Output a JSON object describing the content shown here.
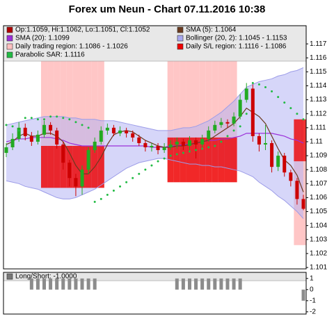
{
  "chart_data": [
    {
      "type": "candlestick",
      "title": "Forex um Neun - Chart 07.11.2016 10:38",
      "ylim": [
        1.1009,
        1.1183
      ],
      "yticks": [
        1.101,
        1.102,
        1.103,
        1.104,
        1.105,
        1.106,
        1.107,
        1.108,
        1.109,
        1.11,
        1.111,
        1.112,
        1.113,
        1.114,
        1.115,
        1.116,
        1.117
      ],
      "up_color": "#22aa22",
      "down_color": "#cc0000",
      "legend": [
        {
          "label": "Op:1.1059, Hi:1.1062, Lo:1.1051, Cl:1.1052",
          "color": "#b00000"
        },
        {
          "label": "SMA (5): 1.1064",
          "color": "#6b3a1f"
        },
        {
          "label": "SMA (20): 1.1099",
          "color": "#9b30d9"
        },
        {
          "label": "Bollinger (20, 2): 1.1045 - 1.1153",
          "color": "#a8a8f0"
        },
        {
          "label": "Daily trading region: 1.1086 - 1.1026",
          "color": "#ffc0c0"
        },
        {
          "label": "Daily S/L region: 1.1116 - 1.1086",
          "color": "#ee0000"
        },
        {
          "label": "Parabolic SAR: 1.1116",
          "color": "#22bb44"
        }
      ],
      "open": [
        1.1092,
        1.1096,
        1.1102,
        1.111,
        1.1104,
        1.11,
        1.1105,
        1.1112,
        1.1108,
        1.1098,
        1.1085,
        1.1074,
        1.1068,
        1.108,
        1.1094,
        1.11,
        1.1108,
        1.111,
        1.1106,
        1.1108,
        1.1106,
        1.1103,
        1.1099,
        1.1096,
        1.1097,
        1.1094,
        1.1096,
        1.1098,
        1.11,
        1.1097,
        1.1101,
        1.1098,
        1.1102,
        1.1108,
        1.1112,
        1.1114,
        1.1113,
        1.1118,
        1.113,
        1.1138,
        1.1104,
        1.1098,
        1.1099,
        1.1082,
        1.109,
        1.1078,
        1.1072,
        1.1059
      ],
      "high": [
        1.1099,
        1.1106,
        1.1114,
        1.1113,
        1.1107,
        1.1108,
        1.1115,
        1.1114,
        1.111,
        1.11,
        1.1087,
        1.1077,
        1.1083,
        1.1096,
        1.1103,
        1.1111,
        1.1113,
        1.1112,
        1.1111,
        1.111,
        1.1108,
        1.1105,
        1.1101,
        1.1099,
        1.1099,
        1.1099,
        1.1101,
        1.1103,
        1.1102,
        1.1104,
        1.1103,
        1.1105,
        1.1111,
        1.1115,
        1.1117,
        1.1116,
        1.1121,
        1.1134,
        1.1142,
        1.1141,
        1.1106,
        1.1112,
        1.1101,
        1.1093,
        1.1092,
        1.108,
        1.1074,
        1.1062
      ],
      "low": [
        1.1089,
        1.1094,
        1.11,
        1.1101,
        1.1097,
        1.1098,
        1.1103,
        1.1105,
        1.1095,
        1.108,
        1.1068,
        1.1061,
        1.1062,
        1.1077,
        1.1092,
        1.1098,
        1.1105,
        1.1104,
        1.1104,
        1.1103,
        1.11,
        1.1097,
        1.1093,
        1.1093,
        1.1091,
        1.1092,
        1.1094,
        1.1095,
        1.1094,
        1.1094,
        1.1088,
        1.1096,
        1.11,
        1.1106,
        1.111,
        1.111,
        1.1111,
        1.1116,
        1.1128,
        1.11,
        1.1093,
        1.1094,
        1.1078,
        1.1079,
        1.1075,
        1.1068,
        1.1055,
        1.1051
      ],
      "close": [
        1.1096,
        1.1102,
        1.111,
        1.1104,
        1.11,
        1.1105,
        1.1112,
        1.1108,
        1.1098,
        1.1085,
        1.1074,
        1.1068,
        1.108,
        1.1094,
        1.11,
        1.1108,
        1.111,
        1.1106,
        1.1108,
        1.1106,
        1.1103,
        1.1099,
        1.1096,
        1.1097,
        1.1094,
        1.1096,
        1.1098,
        1.11,
        1.1097,
        1.1101,
        1.1098,
        1.1102,
        1.1108,
        1.1112,
        1.1114,
        1.1113,
        1.1118,
        1.113,
        1.1138,
        1.1104,
        1.1098,
        1.1099,
        1.1082,
        1.109,
        1.1078,
        1.1072,
        1.1059,
        1.1052
      ],
      "trading_region": {
        "color": "#ffb8b8",
        "high": [
          null,
          null,
          null,
          null,
          null,
          null,
          1.1158,
          1.1158,
          1.1158,
          1.1158,
          1.1158,
          1.1158,
          1.1158,
          1.1158,
          1.1158,
          1.1158,
          null,
          null,
          null,
          null,
          null,
          null,
          null,
          null,
          null,
          null,
          1.1158,
          1.1158,
          1.1158,
          1.1158,
          1.1158,
          1.1158,
          1.1158,
          1.1158,
          1.1158,
          1.1158,
          1.1158,
          null,
          null,
          null,
          null,
          null,
          null,
          null,
          null,
          null,
          1.1086,
          1.1086
        ],
        "low": [
          null,
          null,
          null,
          null,
          null,
          null,
          1.1067,
          1.1067,
          1.1067,
          1.1067,
          1.1067,
          1.1067,
          1.1067,
          1.1067,
          1.1067,
          1.1067,
          null,
          null,
          null,
          null,
          null,
          null,
          null,
          null,
          null,
          null,
          1.1071,
          1.1071,
          1.1071,
          1.1071,
          1.1071,
          1.1071,
          1.1071,
          1.1071,
          1.1071,
          1.1071,
          1.1071,
          null,
          null,
          null,
          null,
          null,
          null,
          null,
          null,
          null,
          1.1026,
          1.1026
        ]
      },
      "sl_region": {
        "color": "#ee0000",
        "high": [
          null,
          null,
          null,
          null,
          null,
          null,
          1.1097,
          1.1097,
          1.1097,
          1.1097,
          1.1097,
          1.1097,
          1.1097,
          1.1097,
          1.1097,
          1.1097,
          null,
          null,
          null,
          null,
          null,
          null,
          null,
          null,
          null,
          null,
          1.1103,
          1.1103,
          1.1103,
          1.1103,
          1.1103,
          1.1103,
          1.1103,
          1.1103,
          1.1103,
          1.1103,
          1.1103,
          null,
          null,
          null,
          null,
          null,
          null,
          null,
          null,
          null,
          1.1116,
          1.1116
        ],
        "low": [
          null,
          null,
          null,
          null,
          null,
          null,
          1.1067,
          1.1067,
          1.1067,
          1.1067,
          1.1067,
          1.1067,
          1.1067,
          1.1067,
          1.1067,
          1.1067,
          null,
          null,
          null,
          null,
          null,
          null,
          null,
          null,
          null,
          null,
          1.1071,
          1.1071,
          1.1071,
          1.1071,
          1.1071,
          1.1071,
          1.1071,
          1.1071,
          1.1071,
          1.1071,
          1.1071,
          null,
          null,
          null,
          null,
          null,
          null,
          null,
          null,
          null,
          1.1086,
          1.1086
        ]
      },
      "bollinger": {
        "color": "#b4b4f4",
        "upper": [
          1.1112,
          1.1113,
          1.1114,
          1.1115,
          1.1116,
          1.1117,
          1.1118,
          1.1118,
          1.1118,
          1.1118,
          1.1117,
          1.1117,
          1.1116,
          1.1116,
          1.1116,
          1.1115,
          1.1115,
          1.1115,
          1.1114,
          1.1113,
          1.1112,
          1.1111,
          1.111,
          1.1109,
          1.1108,
          1.1108,
          1.1108,
          1.1109,
          1.111,
          1.111,
          1.1111,
          1.1113,
          1.1115,
          1.1118,
          1.1121,
          1.1125,
          1.1129,
          1.1134,
          1.1139,
          1.1141,
          1.1143,
          1.1144,
          1.1145,
          1.1147,
          1.1148,
          1.115,
          1.1151,
          1.1153
        ],
        "lower": [
          1.1072,
          1.1071,
          1.107,
          1.1068,
          1.1067,
          1.1066,
          1.1064,
          1.1062,
          1.106,
          1.1059,
          1.1059,
          1.106,
          1.1062,
          1.1064,
          1.1066,
          1.1069,
          1.1072,
          1.1075,
          1.1078,
          1.1081,
          1.1083,
          1.1085,
          1.1086,
          1.1087,
          1.1088,
          1.1088,
          1.1087,
          1.1086,
          1.1085,
          1.1084,
          1.1084,
          1.1083,
          1.1083,
          1.1082,
          1.1082,
          1.1081,
          1.108,
          1.1079,
          1.1077,
          1.1075,
          1.1071,
          1.1068,
          1.1065,
          1.1061,
          1.1058,
          1.1054,
          1.105,
          1.1045
        ]
      },
      "sma20": {
        "color": "#9b30d9",
        "values": [
          1.11,
          1.1101,
          1.1102,
          1.1102,
          1.1103,
          1.1103,
          1.1103,
          1.1103,
          1.1102,
          1.1101,
          1.1099,
          1.1098,
          1.1097,
          1.1097,
          1.1097,
          1.1097,
          1.1097,
          1.1097,
          1.1097,
          1.1097,
          1.1097,
          1.1097,
          1.1097,
          1.1096,
          1.1096,
          1.1096,
          1.1097,
          1.1097,
          1.1098,
          1.1098,
          1.1099,
          1.11,
          1.1101,
          1.1101,
          1.1102,
          1.1102,
          1.1103,
          1.1104,
          1.1106,
          1.1106,
          1.1106,
          1.1106,
          1.1106,
          1.1105,
          1.1104,
          1.1102,
          1.1101,
          1.1099
        ]
      },
      "sma5": {
        "color": "#6b3a1f",
        "values": [
          1.1098,
          1.11,
          1.1104,
          1.1106,
          1.1104,
          1.1104,
          1.1106,
          1.1106,
          1.1104,
          1.11,
          1.1092,
          1.1083,
          1.1077,
          1.1077,
          1.1082,
          1.1089,
          1.1098,
          1.1105,
          1.1107,
          1.1108,
          1.1107,
          1.1104,
          1.1101,
          1.1099,
          1.1097,
          1.1096,
          1.1096,
          1.1097,
          1.1097,
          1.1098,
          1.1099,
          1.11,
          1.1101,
          1.1104,
          1.1107,
          1.111,
          1.1113,
          1.1118,
          1.1124,
          1.1121,
          1.1118,
          1.1113,
          1.1104,
          1.1095,
          1.1087,
          1.1083,
          1.1076,
          1.1064
        ]
      },
      "sar": {
        "color": "#22bb44",
        "values": [
          1.1112,
          1.1111,
          1.1108,
          1.1117,
          1.1117,
          1.1116,
          1.1116,
          1.1118,
          1.1118,
          1.1117,
          1.1116,
          1.1114,
          1.1112,
          1.111,
          1.1057,
          1.1059,
          1.1062,
          1.1065,
          1.1068,
          1.1071,
          1.1074,
          1.1077,
          1.108,
          1.1083,
          1.1086,
          1.1088,
          1.109,
          1.1091,
          1.1092,
          1.1093,
          1.1094,
          1.1095,
          1.1096,
          1.1097,
          1.11,
          1.1104,
          1.1108,
          1.1111,
          1.112,
          1.1142,
          1.1141,
          1.1139,
          1.1136,
          1.1132,
          1.1128,
          1.1124,
          1.112,
          1.1116
        ]
      }
    },
    {
      "type": "bar",
      "legend": [
        {
          "label": "Long/Short: -1.0000",
          "color": "#777777"
        }
      ],
      "color": "#8c8c8c",
      "ylim": [
        -2.2,
        1.55
      ],
      "yticks": [
        1,
        0,
        -1,
        -2
      ],
      "values": [
        0,
        0,
        0,
        0,
        1,
        1,
        1,
        1,
        1,
        1,
        1,
        1,
        1,
        1,
        1,
        0,
        0,
        0,
        0,
        0,
        0,
        0,
        0,
        0,
        0,
        0,
        0,
        1,
        1,
        1,
        1,
        1,
        1,
        1,
        1,
        1,
        1,
        1,
        0,
        0,
        0,
        0,
        0,
        0,
        0,
        0,
        0,
        -1
      ]
    }
  ]
}
